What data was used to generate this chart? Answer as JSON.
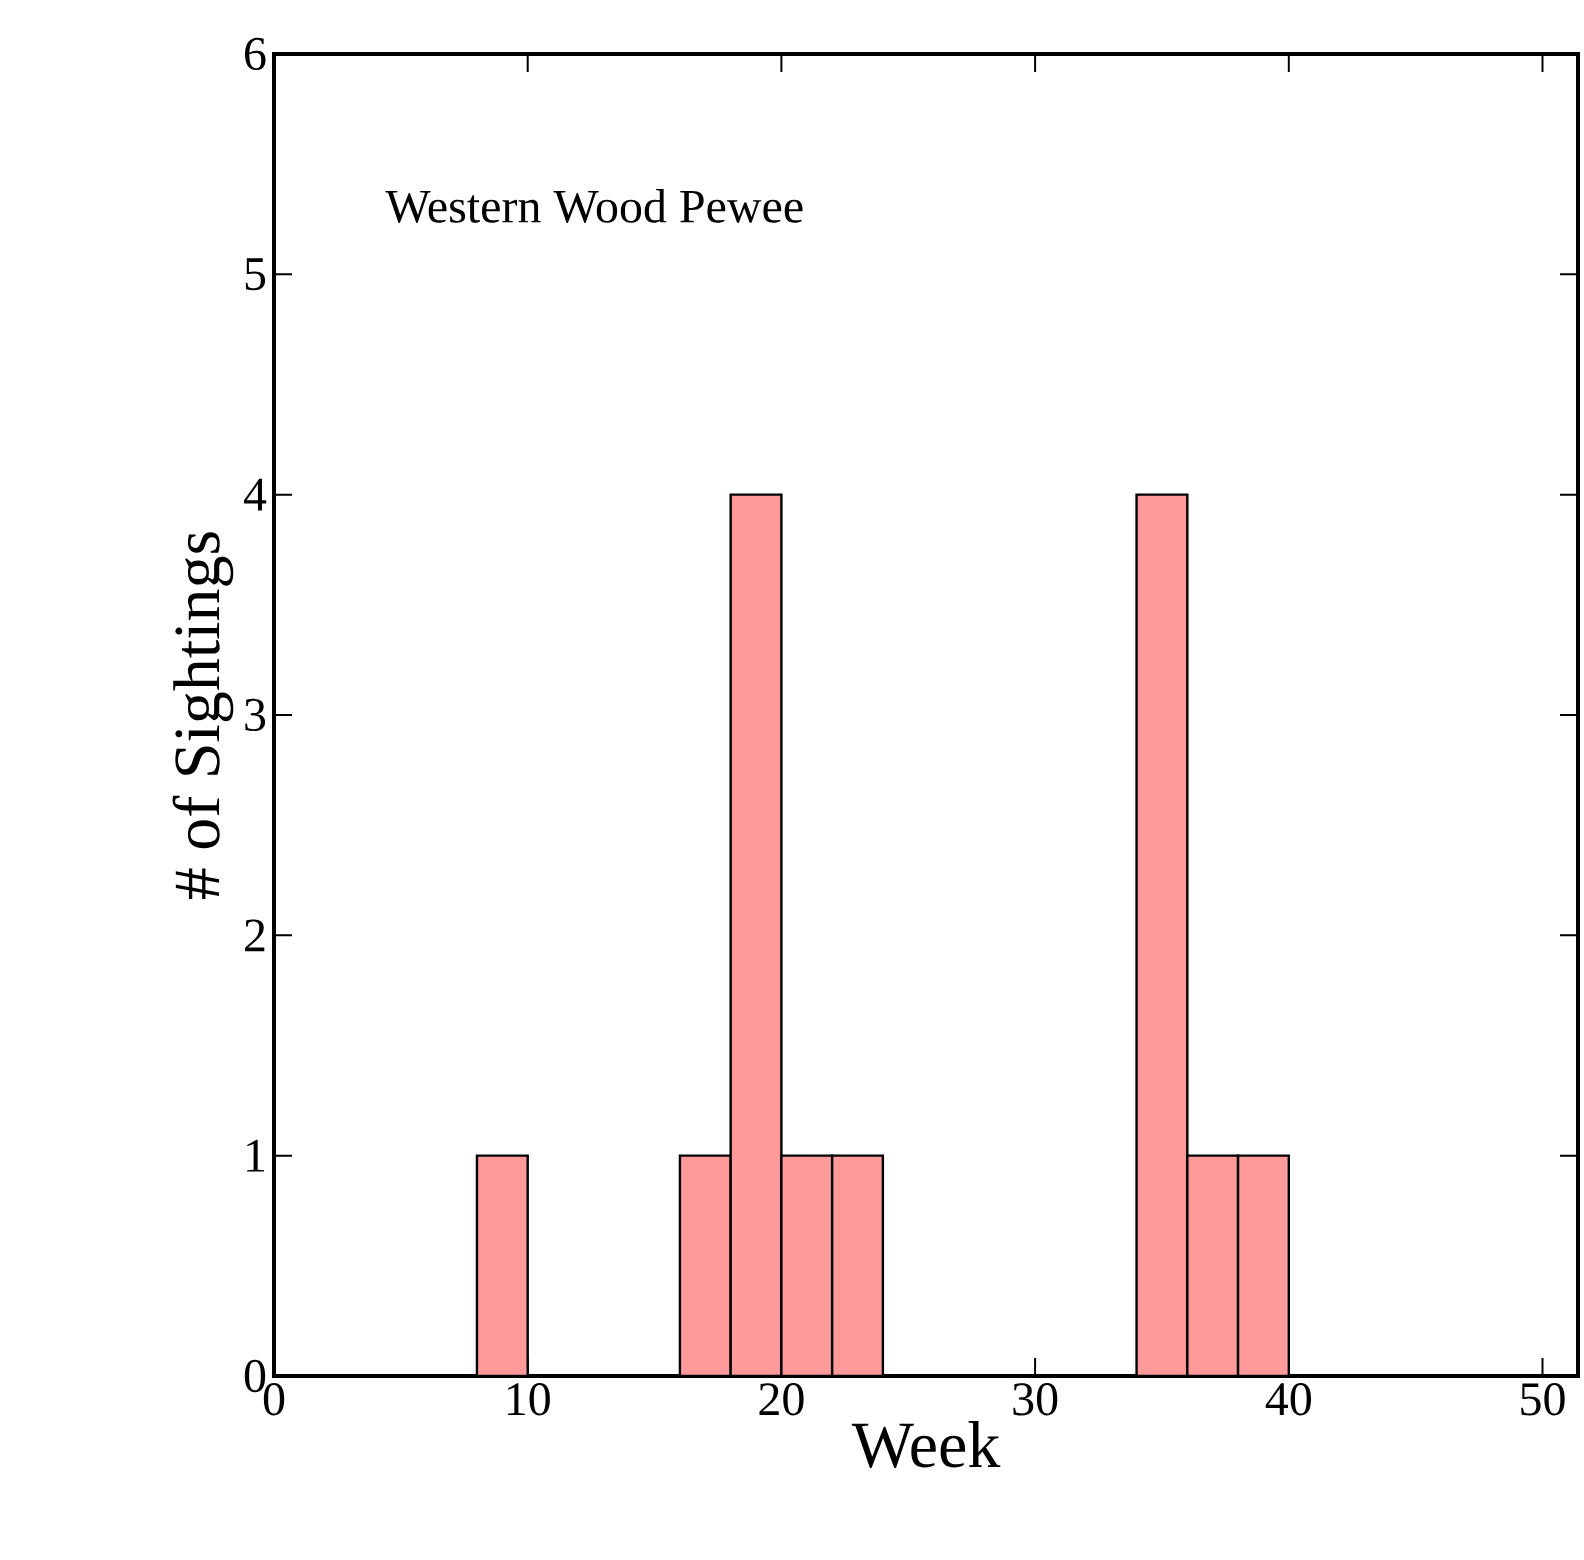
{
  "chart_data": {
    "type": "histogram",
    "title": "Western Wood Pewee",
    "xlabel": "Week",
    "ylabel": "# of Sightings",
    "bins": [
      8,
      10,
      12,
      14,
      16,
      18,
      20,
      22,
      24,
      26,
      28,
      30,
      32,
      34,
      36,
      38,
      40
    ],
    "values": [
      1,
      0,
      0,
      0,
      1,
      4,
      1,
      1,
      0,
      0,
      0,
      0,
      0,
      4,
      1,
      1
    ],
    "color": "#ff9a9a",
    "xlim": [
      0,
      51.4
    ],
    "xticks": [
      0,
      10,
      20,
      30,
      40,
      50
    ],
    "ylim": [
      0,
      6
    ],
    "yticks": [
      0,
      1,
      2,
      3,
      4,
      5,
      6
    ]
  }
}
